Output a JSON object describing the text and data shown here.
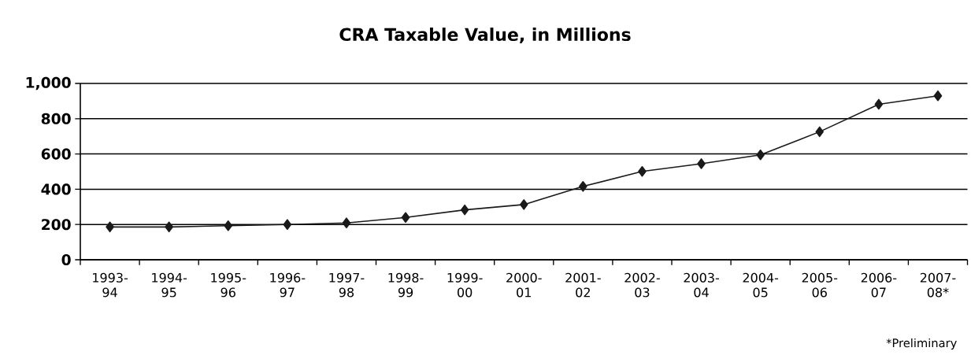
{
  "chart_data": {
    "type": "line",
    "title": "CRA Taxable Value, in Millions",
    "categories": [
      "1993-94",
      "1994-95",
      "1995-96",
      "1996-97",
      "1997-98",
      "1998-99",
      "1999-00",
      "2000-01",
      "2001-02",
      "2002-03",
      "2003-04",
      "2004-05",
      "2005-06",
      "2006-07",
      "2007-08*"
    ],
    "series": [
      {
        "color": "#1a1a1a",
        "values": [
          186,
          186,
          193,
          200,
          209,
          240,
          283,
          313,
          416,
          501,
          545,
          595,
          726,
          882,
          930
        ]
      }
    ],
    "ylim": [
      0,
      1000
    ],
    "yticks": [
      0,
      200,
      400,
      600,
      800,
      {
        "value": 1000,
        "label": "1,000"
      }
    ],
    "grid": "y",
    "marker": "diamond",
    "line_style": "solid",
    "annotations": [
      "*Preliminary"
    ]
  }
}
